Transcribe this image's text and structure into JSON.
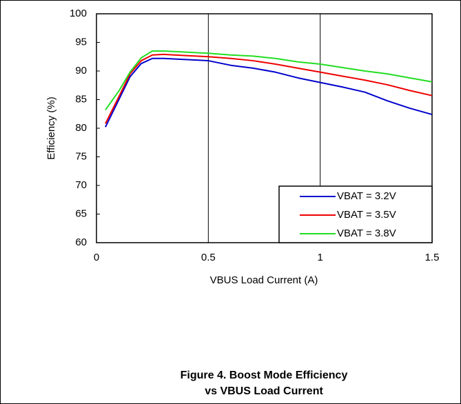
{
  "chart_data": {
    "type": "line",
    "title": [
      "Figure 4. Boost Mode Efficiency",
      "vs VBUS Load Current"
    ],
    "x_label": "VBUS Load Current (A)",
    "y_label": "Efficiency (%)",
    "x": [
      0.04,
      0.1,
      0.15,
      0.2,
      0.25,
      0.3,
      0.4,
      0.5,
      0.6,
      0.7,
      0.8,
      0.9,
      1.0,
      1.1,
      1.2,
      1.3,
      1.4,
      1.5
    ],
    "series": [
      {
        "name": "VBAT = 3.2V",
        "color": "#0000cc",
        "values": [
          80.2,
          85,
          89,
          91.3,
          92.2,
          92.2,
          92,
          91.8,
          91,
          90.5,
          89.8,
          88.8,
          88,
          87.2,
          86.3,
          84.8,
          83.5,
          82.4
        ]
      },
      {
        "name": "VBAT = 3.5V",
        "color": "#ee0000",
        "values": [
          80.8,
          85.5,
          89.5,
          91.8,
          92.8,
          92.9,
          92.7,
          92.5,
          92.2,
          91.8,
          91.2,
          90.5,
          89.8,
          89.1,
          88.4,
          87.6,
          86.6,
          85.7
        ]
      },
      {
        "name": "VBAT = 3.8V",
        "color": "#22dd22",
        "values": [
          83.2,
          86.5,
          89.8,
          92.3,
          93.5,
          93.5,
          93.3,
          93.1,
          92.8,
          92.6,
          92.2,
          91.6,
          91.2,
          90.6,
          90,
          89.5,
          88.8,
          88.1
        ]
      }
    ],
    "xlim": [
      0,
      1.5
    ],
    "xticks": [
      0,
      0.5,
      1,
      1.5
    ],
    "ylim": [
      60,
      100
    ],
    "yticks": [
      60,
      65,
      70,
      75,
      80,
      85,
      90,
      95,
      100
    ],
    "grid": "x",
    "legend": "lower right"
  }
}
